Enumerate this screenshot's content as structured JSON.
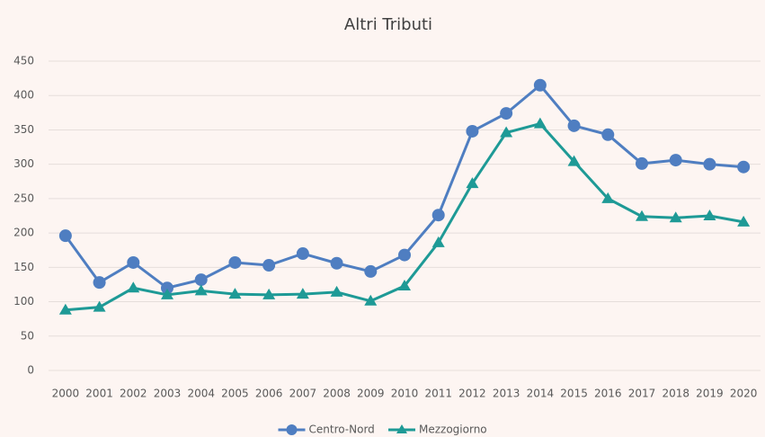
{
  "chart_data": {
    "type": "line",
    "title": "Altri Tributi",
    "categories": [
      "2000",
      "2001",
      "2002",
      "2003",
      "2004",
      "2005",
      "2006",
      "2007",
      "2008",
      "2009",
      "2010",
      "2011",
      "2012",
      "2013",
      "2014",
      "2015",
      "2016",
      "2017",
      "2018",
      "2019",
      "2020"
    ],
    "series": [
      {
        "name": "Centro-Nord",
        "color": "#4f7ec1",
        "marker": "circle",
        "values": [
          196,
          128,
          157,
          120,
          132,
          157,
          153,
          170,
          156,
          144,
          168,
          226,
          348,
          374,
          415,
          356,
          343,
          301,
          306,
          300,
          296
        ]
      },
      {
        "name": "Mezzogiorno",
        "color": "#1e9a96",
        "marker": "triangle",
        "values": [
          88,
          92,
          120,
          110,
          116,
          111,
          110,
          111,
          114,
          101,
          123,
          186,
          272,
          346,
          359,
          304,
          250,
          224,
          222,
          225,
          216
        ]
      }
    ],
    "ylim": [
      0,
      450
    ],
    "yticks": [
      0,
      50,
      100,
      150,
      200,
      250,
      300,
      350,
      400,
      450
    ],
    "grid": true,
    "legend": "bottom"
  }
}
